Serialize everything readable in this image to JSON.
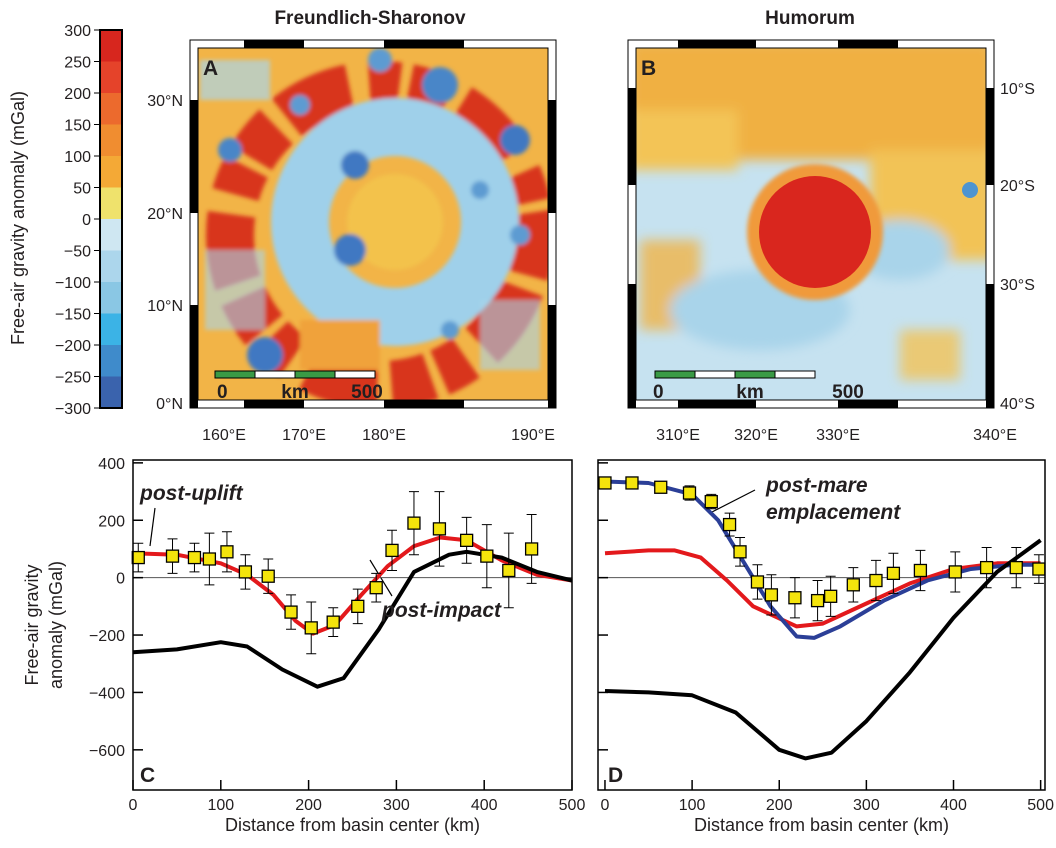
{
  "colorbar": {
    "label": "Free-air gravity anomaly (mGal)",
    "lim": [
      -300,
      300
    ],
    "ticks": [
      300,
      250,
      200,
      150,
      100,
      50,
      0,
      {
        "value": -50,
        "label": "−50"
      },
      {
        "value": -100,
        "label": "−100"
      },
      {
        "value": -150,
        "label": "−150"
      },
      {
        "value": -200,
        "label": "−200"
      },
      {
        "value": -250,
        "label": "−250"
      },
      {
        "value": -300,
        "label": "−300"
      }
    ],
    "colors": [
      "#d7261e",
      "#e5432a",
      "#ec6a2d",
      "#f08d30",
      "#f4a936",
      "#efe26c",
      "#cfe7f2",
      "#acd6ec",
      "#8ac7e4",
      "#3bb3e6",
      "#3f8bcb",
      "#3a63ad"
    ]
  },
  "maps": [
    {
      "panel": "A",
      "title": "Freundlich-Sharonov",
      "lat_labels": [
        "30°N",
        "20°N",
        "10°N",
        "0°N"
      ],
      "lon_labels": [
        "160°E",
        "170°E",
        "180°E",
        "190°E"
      ],
      "scale_bar": [
        "0",
        "km",
        "500"
      ]
    },
    {
      "panel": "B",
      "title": "Humorum",
      "lat_labels": [
        "10°S",
        "20°S",
        "30°S",
        "40°S"
      ],
      "lon_labels": [
        "310°E",
        "320°E",
        "330°E",
        "340°E"
      ],
      "scale_bar": [
        "0",
        "km",
        "500"
      ]
    }
  ],
  "chart_data": [
    {
      "type": "line",
      "panel": "C",
      "ylabel": [
        "Free-air gravity",
        "anomaly (mGal)"
      ],
      "xlabel": "Distance from basin center (km)",
      "xlim": [
        0,
        500
      ],
      "xticks": [
        0,
        100,
        200,
        300,
        400,
        500
      ],
      "ylim": [
        -740,
        410
      ],
      "yticks": [
        {
          "value": -600,
          "label": "−600"
        },
        {
          "value": -400,
          "label": "−400"
        },
        {
          "value": -200,
          "label": "−200"
        },
        0,
        200,
        400
      ],
      "annotations": [
        "post-uplift",
        "post-impact"
      ],
      "series": [
        {
          "color": "#e3191c",
          "x": [
            0,
            50,
            100,
            130,
            160,
            185,
            205,
            230,
            260,
            290,
            320,
            350,
            380,
            420,
            460,
            500
          ],
          "values": [
            85,
            80,
            50,
            10,
            -60,
            -150,
            -195,
            -165,
            -60,
            40,
            110,
            140,
            130,
            60,
            10,
            -10
          ]
        },
        {
          "color": "#000000",
          "x": [
            0,
            50,
            100,
            130,
            170,
            210,
            240,
            280,
            320,
            360,
            380,
            420,
            460,
            500
          ],
          "values": [
            -260,
            -250,
            -225,
            -240,
            -320,
            -380,
            -350,
            -180,
            20,
            80,
            90,
            70,
            20,
            -10
          ]
        },
        {
          "marker": "square",
          "color": "#f4e40c",
          "x": [
            6,
            45,
            70,
            87,
            107,
            128,
            154,
            180,
            203,
            228,
            256,
            277,
            295,
            320,
            349,
            380,
            403,
            428,
            454
          ],
          "values": [
            70,
            75,
            70,
            65,
            90,
            20,
            5,
            -120,
            -175,
            -155,
            -100,
            -35,
            95,
            190,
            170,
            130,
            75,
            25,
            100
          ],
          "errors": [
            50,
            60,
            50,
            90,
            70,
            60,
            60,
            60,
            90,
            50,
            60,
            50,
            70,
            110,
            130,
            80,
            110,
            130,
            120
          ]
        }
      ]
    },
    {
      "type": "line",
      "panel": "D",
      "xlabel": "Distance from basin center (km)",
      "xlim": [
        -8,
        505
      ],
      "xticks": [
        0,
        100,
        200,
        300,
        400,
        500
      ],
      "ylim": [
        -740,
        410
      ],
      "yticks": [
        -600,
        -400,
        -200,
        0,
        200,
        400
      ],
      "annotations": [
        "post-mare",
        "emplacement"
      ],
      "series": [
        {
          "color": "#e3191c",
          "x": [
            0,
            50,
            80,
            110,
            140,
            170,
            220,
            250,
            300,
            350,
            400,
            450,
            500
          ],
          "values": [
            85,
            95,
            95,
            70,
            -10,
            -100,
            -170,
            -160,
            -90,
            -20,
            30,
            50,
            50
          ]
        },
        {
          "color": "#2b3f97",
          "x": [
            0,
            50,
            100,
            130,
            160,
            190,
            220,
            240,
            270,
            320,
            370,
            420,
            470,
            500
          ],
          "values": [
            335,
            330,
            290,
            200,
            50,
            -100,
            -205,
            -210,
            -170,
            -80,
            -10,
            30,
            45,
            45
          ]
        },
        {
          "color": "#000000",
          "x": [
            0,
            50,
            100,
            150,
            200,
            230,
            260,
            300,
            350,
            400,
            450,
            500
          ],
          "values": [
            -395,
            -400,
            -410,
            -470,
            -600,
            -630,
            -610,
            -500,
            -330,
            -140,
            20,
            130
          ]
        },
        {
          "marker": "square",
          "color": "#f4e40c",
          "x": [
            0,
            31,
            64,
            97,
            122,
            143,
            155,
            175,
            191,
            218,
            244,
            259,
            285,
            311,
            331,
            362,
            402,
            438,
            472,
            498
          ],
          "values": [
            330,
            330,
            315,
            295,
            265,
            185,
            90,
            -15,
            -60,
            -70,
            -80,
            -65,
            -25,
            -10,
            15,
            25,
            20,
            35,
            35,
            30
          ],
          "errors": [
            20,
            15,
            20,
            25,
            25,
            40,
            50,
            60,
            70,
            70,
            70,
            70,
            60,
            70,
            70,
            70,
            70,
            70,
            70,
            50
          ]
        }
      ]
    }
  ]
}
